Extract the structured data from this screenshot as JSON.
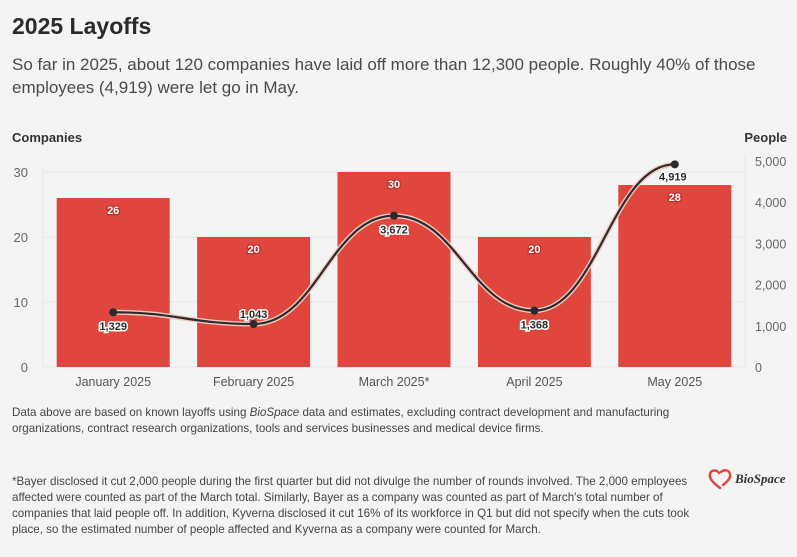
{
  "header": {
    "title": "2025 Layoffs",
    "subtitle": "So far in 2025, about 120 companies have laid off more than 12,300 people. Roughly 40% of those employees (4,919) were let go in May."
  },
  "chart_data": {
    "type": "bar",
    "title": "2025 Layoffs",
    "categories": [
      "January 2025",
      "February 2025",
      "March 2025*",
      "April 2025",
      "May 2025"
    ],
    "series": [
      {
        "name": "Companies",
        "type": "bar",
        "axis": "left",
        "values": [
          26,
          20,
          30,
          20,
          28
        ],
        "labels": [
          "26",
          "20",
          "30",
          "20",
          "28"
        ],
        "color": "#e0463d"
      },
      {
        "name": "People",
        "type": "line",
        "axis": "right",
        "values": [
          1329,
          1043,
          3672,
          1368,
          4919
        ],
        "labels": [
          "1,329",
          "1,043",
          "3,672",
          "1,368",
          "4,919"
        ],
        "color": "#2b2b2b"
      }
    ],
    "left_axis": {
      "label": "Companies",
      "range": [
        0,
        30
      ],
      "ticks": [
        0,
        10,
        20,
        30
      ],
      "tick_labels": [
        "0",
        "10",
        "20",
        "30"
      ]
    },
    "right_axis": {
      "label": "People",
      "range": [
        0,
        5000
      ],
      "ticks": [
        0,
        1000,
        2000,
        3000,
        4000,
        5000
      ],
      "tick_labels": [
        "0",
        "1,000",
        "2,000",
        "3,000",
        "4,000",
        "5,000"
      ]
    },
    "grid": true,
    "legend": "none"
  },
  "notes": {
    "note1_before": "Data above are based on known layoffs using ",
    "note1_italic": "BioSpace",
    "note1_after": " data and estimates, excluding contract development and manufacturing organizations, contract research organizations, tools and services businesses and medical device firms.",
    "note2": "*Bayer disclosed it cut 2,000 people during the first quarter but did not divulge the number of rounds involved. The 2,000 employees affected were counted as part of the March total. Similarly, Bayer as a company was counted as part of March's total number of companies that laid people off. In addition, Kyverna disclosed it cut 16% of its workforce in Q1 but did not specify when the cuts took place, so the estimated number of people affected and Kyverna as a company were counted for March."
  },
  "logo": {
    "text": "BioSpace",
    "icon": "biospace-heart-icon"
  }
}
